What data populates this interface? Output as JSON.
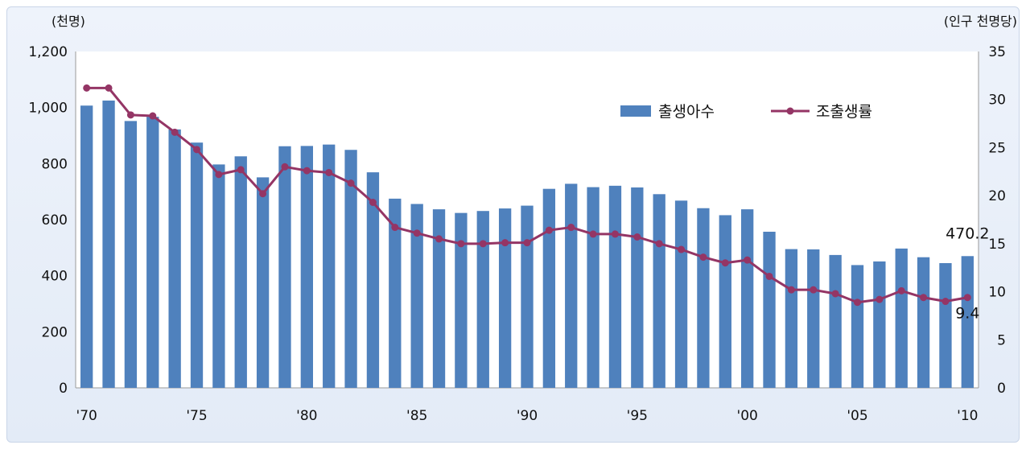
{
  "chart_data": {
    "type": "bar",
    "title": "",
    "left_unit": "(천명)",
    "right_unit": "(인구 천명당)",
    "y_left": {
      "lim": [
        0,
        1200
      ],
      "ticks": [
        0,
        200,
        400,
        600,
        800,
        1000,
        1200
      ],
      "tick_labels": [
        "0",
        "200",
        "400",
        "600",
        "800",
        "1,000",
        "1,200"
      ]
    },
    "y_right": {
      "lim": [
        0,
        35
      ],
      "ticks": [
        0,
        5,
        10,
        15,
        20,
        25,
        30,
        35
      ],
      "tick_labels": [
        "0",
        "5",
        "10",
        "15",
        "20",
        "25",
        "30",
        "35"
      ]
    },
    "x": [
      "1970",
      "1971",
      "1972",
      "1973",
      "1974",
      "1975",
      "1976",
      "1977",
      "1978",
      "1979",
      "1980",
      "1981",
      "1982",
      "1983",
      "1984",
      "1985",
      "1986",
      "1987",
      "1988",
      "1989",
      "1990",
      "1991",
      "1992",
      "1993",
      "1994",
      "1995",
      "1996",
      "1997",
      "1998",
      "1999",
      "2000",
      "2001",
      "2002",
      "2003",
      "2004",
      "2005",
      "2006",
      "2007",
      "2008",
      "2009",
      "2010"
    ],
    "x_tick_labels": [
      {
        "index": 0,
        "label": "'70"
      },
      {
        "index": 5,
        "label": "'75"
      },
      {
        "index": 10,
        "label": "'80"
      },
      {
        "index": 15,
        "label": "'85"
      },
      {
        "index": 20,
        "label": "'90"
      },
      {
        "index": 25,
        "label": "'95"
      },
      {
        "index": 30,
        "label": "'00"
      },
      {
        "index": 35,
        "label": "'05"
      },
      {
        "index": 40,
        "label": "'10"
      }
    ],
    "series": [
      {
        "name": "출생아수",
        "kind": "bar",
        "axis": "left",
        "color": "#4f81bd",
        "values": [
          1007,
          1025,
          952,
          967,
          922,
          875,
          797,
          826,
          751,
          862,
          863,
          868,
          849,
          769,
          675,
          656,
          637,
          624,
          631,
          640,
          650,
          710,
          728,
          716,
          721,
          715,
          691,
          668,
          641,
          616,
          637,
          557,
          495,
          494,
          474,
          438,
          451,
          497,
          466,
          445,
          470
        ]
      },
      {
        "name": "조출생률",
        "kind": "line",
        "axis": "right",
        "color": "#943565",
        "values": [
          31.2,
          31.2,
          28.4,
          28.3,
          26.6,
          24.8,
          22.2,
          22.7,
          20.2,
          23.0,
          22.6,
          22.4,
          21.3,
          19.3,
          16.7,
          16.1,
          15.5,
          15.0,
          15.0,
          15.1,
          15.1,
          16.4,
          16.7,
          16.0,
          16.0,
          15.7,
          15.0,
          14.4,
          13.6,
          13.0,
          13.3,
          11.6,
          10.2,
          10.2,
          9.8,
          8.9,
          9.2,
          10.1,
          9.4,
          9.0,
          9.4
        ]
      }
    ],
    "annotations": [
      {
        "series": 0,
        "index": 40,
        "text": "470.2"
      },
      {
        "series": 1,
        "index": 40,
        "text": "9.4"
      }
    ],
    "legend": {
      "position": "top-right"
    },
    "grid": false
  }
}
